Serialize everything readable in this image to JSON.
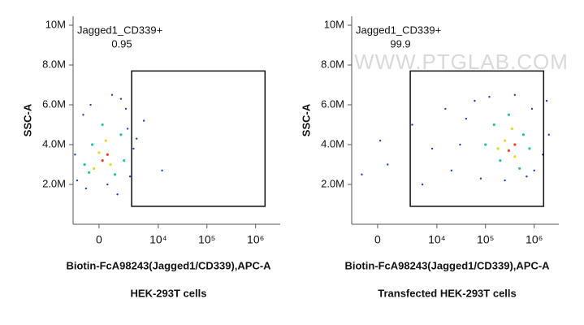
{
  "watermark": "WWW.PTGLAB.COM",
  "chart_data": [
    {
      "type": "scatter",
      "title": "HEK-293T cells",
      "xlabel": "Biotin-FcA98243(Jagged1/CD339),APC-A",
      "ylabel": "SSC-A",
      "xscale": "biexponential",
      "xlim": [
        -1900,
        3200000
      ],
      "ylim": [
        0,
        10450000
      ],
      "xticks": [
        0,
        {
          "value": 10000,
          "label": "10⁴"
        },
        {
          "value": 100000,
          "label": "10⁵"
        },
        {
          "value": 1000000,
          "label": "10⁶"
        }
      ],
      "yticks": [
        {
          "value": 2000000,
          "label": "2.0M"
        },
        {
          "value": 4000000,
          "label": "4.0M"
        },
        {
          "value": 6000000,
          "label": "6.0M"
        },
        {
          "value": 8000000,
          "label": "8.0M"
        },
        {
          "value": 10000000,
          "label": "10M"
        }
      ],
      "gate": {
        "label": "Jagged1_CD339+",
        "value": 0.95,
        "x": [
          2720,
          1560000
        ],
        "y": [
          900000,
          7700000
        ]
      },
      "series": [
        {
          "color": "#1f3fbf",
          "x": [
            -1500,
            -1000,
            2000,
            2500,
            -800,
            1500,
            3000,
            -1700,
            500,
            2200,
            -500,
            1200,
            5000,
            12000,
            800,
            3500
          ],
          "y": [
            2200000,
            5500000,
            5800000,
            2400000,
            1800000,
            6300000,
            3800000,
            3500000,
            2000000,
            4800000,
            6000000,
            1500000,
            5200000,
            2700000,
            6500000,
            4300000
          ]
        },
        {
          "color": "#2fc09a",
          "x": [
            -600,
            1500,
            -400,
            1000,
            1800,
            -900,
            200
          ],
          "y": [
            2600000,
            4500000,
            4000000,
            2500000,
            3200000,
            3000000,
            5000000
          ]
        },
        {
          "color": "#e3d82a",
          "x": [
            0,
            700,
            -300,
            400
          ],
          "y": [
            3600000,
            3000000,
            2800000,
            4200000
          ]
        },
        {
          "color": "#e2462a",
          "x": [
            200,
            500
          ],
          "y": [
            3200000,
            3500000
          ]
        }
      ]
    },
    {
      "type": "scatter",
      "title": "Transfected HEK-293T cells",
      "xlabel": "Biotin-FcA98243(Jagged1/CD339),APC-A",
      "ylabel": "SSC-A",
      "xscale": "biexponential",
      "xlim": [
        -1900,
        3200000
      ],
      "ylim": [
        0,
        10450000
      ],
      "xticks": [
        0,
        {
          "value": 10000,
          "label": "10⁴"
        },
        {
          "value": 100000,
          "label": "10⁵"
        },
        {
          "value": 1000000,
          "label": "10⁶"
        }
      ],
      "yticks": [
        {
          "value": 2000000,
          "label": "2.0M"
        },
        {
          "value": 4000000,
          "label": "4.0M"
        },
        {
          "value": 6000000,
          "label": "6.0M"
        },
        {
          "value": 8000000,
          "label": "8.0M"
        },
        {
          "value": 10000000,
          "label": "10M"
        }
      ],
      "gate": {
        "label": "Jagged1_CD339+",
        "value": 99.9,
        "x": [
          2720,
          1560000
        ],
        "y": [
          900000,
          7700000
        ]
      },
      "series": [
        {
          "color": "#1f3fbf",
          "x": [
            150,
            600,
            3000,
            8000,
            20000,
            40000,
            60000,
            80000,
            900000,
            1500000,
            700000,
            2000000,
            30000,
            120000,
            400000,
            1000000,
            5000,
            -1000,
            15000,
            250000,
            1800000
          ],
          "y": [
            4200000,
            3000000,
            5000000,
            3800000,
            2700000,
            5300000,
            6200000,
            2300000,
            5800000,
            3500000,
            2400000,
            4500000,
            4000000,
            6400000,
            6500000,
            2700000,
            2000000,
            2500000,
            5800000,
            2200000,
            6200000
          ]
        },
        {
          "color": "#2fc09a",
          "x": [
            150000,
            300000,
            600000,
            200000,
            500000,
            100000,
            800000
          ],
          "y": [
            5000000,
            5500000,
            4500000,
            3200000,
            2800000,
            4000000,
            3800000
          ]
        },
        {
          "color": "#e3d82a",
          "x": [
            250000,
            400000,
            350000,
            180000
          ],
          "y": [
            4200000,
            3400000,
            4800000,
            3800000
          ]
        },
        {
          "color": "#e2462a",
          "x": [
            300000,
            400000
          ],
          "y": [
            3700000,
            4000000
          ]
        }
      ]
    }
  ]
}
